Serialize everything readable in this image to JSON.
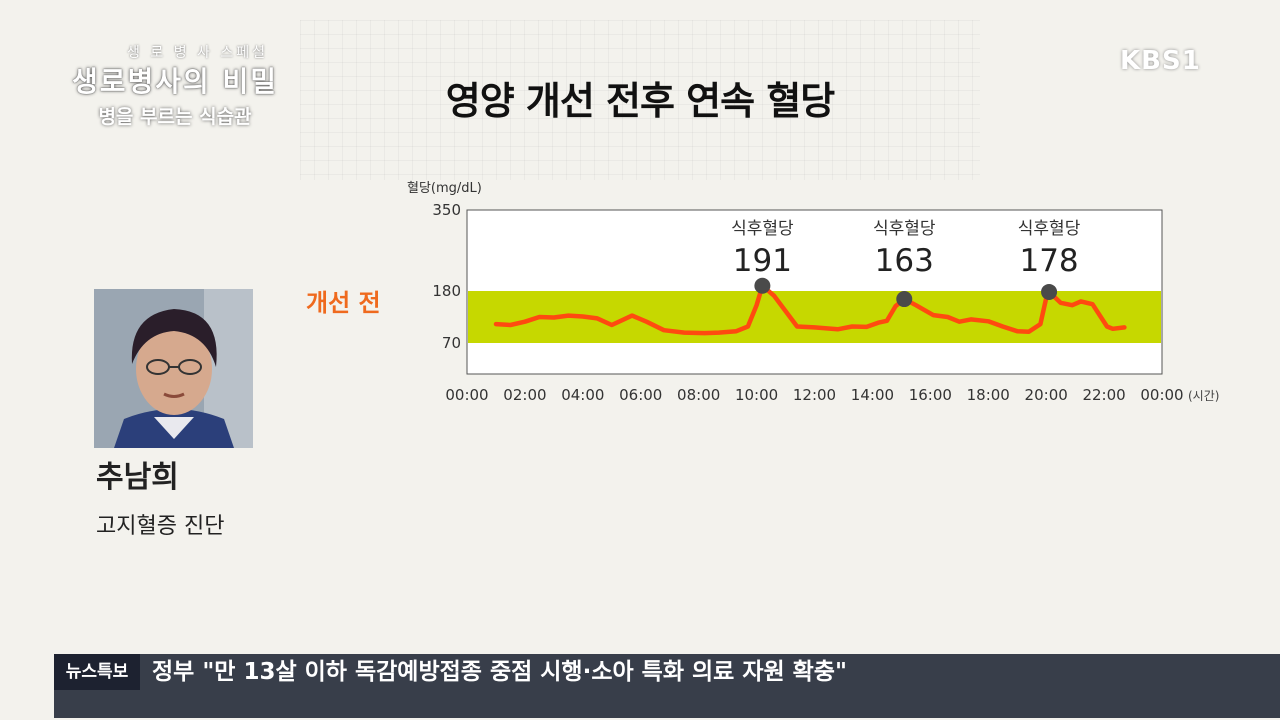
{
  "show": {
    "top_line": "생 로 병 사 스페셜",
    "title": "생로병사의 비밀",
    "subtitle": "병을 부르는 식습관"
  },
  "channel": "KBS1",
  "headline": "영양 개선 전후 연속 혈당",
  "person": {
    "name": "추남희",
    "description": "고지혈증 진단"
  },
  "phase_label": "개선 전",
  "chart_data": {
    "type": "line",
    "ylabel": "혈당(mg/dL)",
    "xlabel": "(시간)",
    "y_ticks": [
      350,
      180,
      70
    ],
    "ylim": [
      0,
      350
    ],
    "x_ticks": [
      "00:00",
      "02:00",
      "04:00",
      "06:00",
      "08:00",
      "10:00",
      "12:00",
      "14:00",
      "16:00",
      "18:00",
      "20:00",
      "22:00",
      "00:00"
    ],
    "xlim_hours": [
      0,
      24
    ],
    "target_band": {
      "low": 70,
      "high": 180,
      "color": "#c6d800"
    },
    "series": [
      {
        "color": "#ff4a10",
        "points": [
          [
            1.0,
            110
          ],
          [
            1.5,
            108
          ],
          [
            2.0,
            115
          ],
          [
            2.5,
            125
          ],
          [
            3.0,
            124
          ],
          [
            3.5,
            128
          ],
          [
            4.0,
            126
          ],
          [
            4.5,
            122
          ],
          [
            5.0,
            108
          ],
          [
            5.7,
            128
          ],
          [
            6.2,
            115
          ],
          [
            6.8,
            97
          ],
          [
            7.5,
            92
          ],
          [
            8.2,
            91
          ],
          [
            8.7,
            92
          ],
          [
            9.3,
            95
          ],
          [
            9.7,
            105
          ],
          [
            10.0,
            150
          ],
          [
            10.2,
            191
          ],
          [
            10.6,
            170
          ],
          [
            11.4,
            105
          ],
          [
            12.0,
            103
          ],
          [
            12.8,
            99
          ],
          [
            13.3,
            105
          ],
          [
            13.8,
            104
          ],
          [
            14.2,
            113
          ],
          [
            14.5,
            117
          ],
          [
            14.8,
            148
          ],
          [
            15.1,
            163
          ],
          [
            15.5,
            150
          ],
          [
            16.1,
            129
          ],
          [
            16.6,
            125
          ],
          [
            17.0,
            115
          ],
          [
            17.4,
            120
          ],
          [
            18.0,
            116
          ],
          [
            18.5,
            105
          ],
          [
            19.0,
            95
          ],
          [
            19.4,
            94
          ],
          [
            19.8,
            110
          ],
          [
            20.0,
            165
          ],
          [
            20.1,
            178
          ],
          [
            20.5,
            155
          ],
          [
            20.9,
            150
          ],
          [
            21.2,
            158
          ],
          [
            21.6,
            152
          ],
          [
            22.1,
            105
          ],
          [
            22.3,
            100
          ],
          [
            22.7,
            103
          ]
        ]
      }
    ],
    "annotations": [
      {
        "x": 10.2,
        "y": 191,
        "label": "식후혈당",
        "value": "191"
      },
      {
        "x": 15.1,
        "y": 163,
        "label": "식후혈당",
        "value": "163"
      },
      {
        "x": 20.1,
        "y": 178,
        "label": "식후혈당",
        "value": "178"
      }
    ]
  },
  "ticker": {
    "label": "뉴스특보",
    "text": "정부 \"만 13살 이하 독감예방접종 중점 시행·소아 특화 의료 자원 확충\""
  }
}
